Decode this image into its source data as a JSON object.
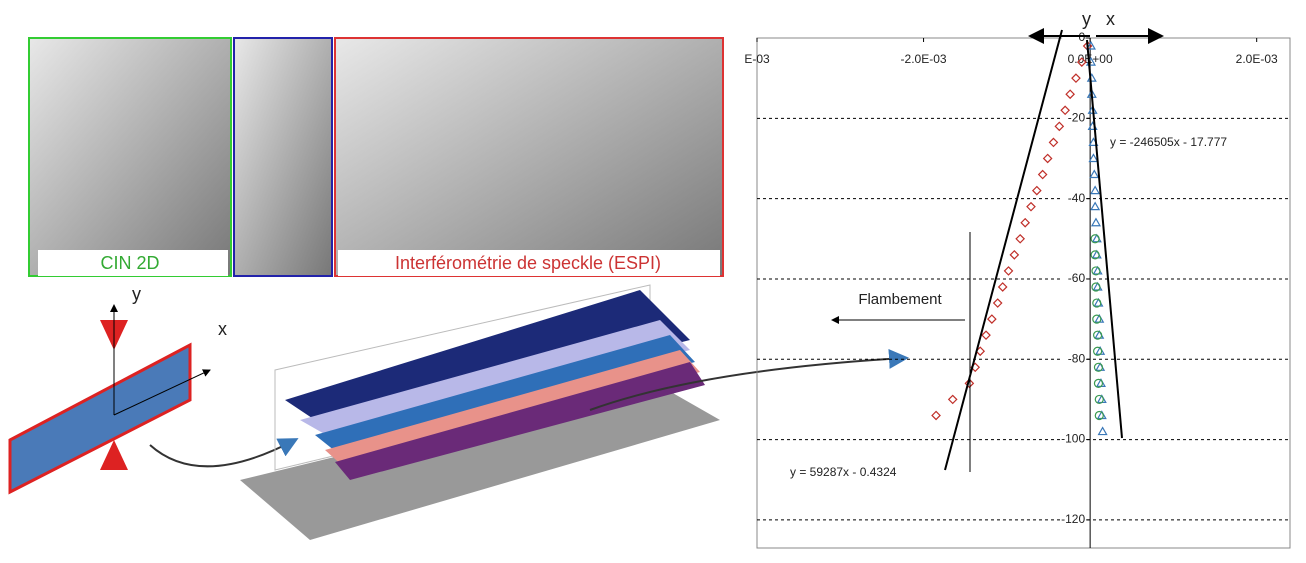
{
  "photos": {
    "cin": "CIN 2D",
    "espi": "Interférométrie de speckle (ESPI)"
  },
  "diagram": {
    "y": "y",
    "x": "x"
  },
  "chart_data": {
    "type": "scatter",
    "arrow_y": "y",
    "arrow_x": "x",
    "annotation": "Flambement",
    "equations": [
      "y = -246505x - 17.777",
      "y = 59287x - 0.4324"
    ],
    "xlim": [
      -0.004,
      0.0024
    ],
    "xticks": [
      {
        "value": -0.004,
        "label": "E-03"
      },
      {
        "value": -0.002,
        "label": "-2.0E-03"
      },
      {
        "value": 0,
        "label": "0.0E+00"
      },
      {
        "value": 0.002,
        "label": "2.0E-03"
      }
    ],
    "ylim": [
      -127,
      0
    ],
    "yticks": [
      0,
      -20,
      -40,
      -60,
      -80,
      -100,
      -120
    ],
    "grid": true,
    "series": [
      {
        "color": "#c0302a",
        "marker": "diamond",
        "x": [
          -3e-05,
          -0.0001,
          -0.00017,
          -0.00024,
          -0.0003,
          -0.00037,
          -0.00044,
          -0.00051,
          -0.00057,
          -0.00064,
          -0.00071,
          -0.00078,
          -0.00084,
          -0.00091,
          -0.00098,
          -0.00105,
          -0.00111,
          -0.00118,
          -0.00125,
          -0.00132,
          -0.00138,
          -0.00145,
          -0.00165,
          -0.00185
        ],
        "values": [
          -2,
          -6,
          -10,
          -14,
          -18,
          -22,
          -26,
          -30,
          -34,
          -38,
          -42,
          -46,
          -50,
          -54,
          -58,
          -62,
          -66,
          -70,
          -74,
          -78,
          -82,
          -86,
          -90,
          -94
        ]
      },
      {
        "color": "#3a78b8",
        "marker": "triangle",
        "x": [
          1e-05,
          1e-05,
          2e-05,
          2e-05,
          3e-05,
          3e-05,
          4e-05,
          4e-05,
          5e-05,
          6e-05,
          6e-05,
          7e-05,
          8e-05,
          8e-05,
          9e-05,
          9e-05,
          0.0001,
          0.00011,
          0.00011,
          0.00012,
          0.00012,
          0.00013,
          0.00014,
          0.00014,
          0.00015
        ],
        "values": [
          -2,
          -6,
          -10,
          -14,
          -18,
          -22,
          -26,
          -30,
          -34,
          -38,
          -42,
          -46,
          -50,
          -54,
          -58,
          -62,
          -66,
          -70,
          -74,
          -78,
          -82,
          -86,
          -90,
          -94,
          -98
        ]
      },
      {
        "color": "#3a9a50",
        "marker": "circle",
        "x": [
          6e-05,
          6e-05,
          7e-05,
          7e-05,
          8e-05,
          8e-05,
          9e-05,
          9e-05,
          0.0001,
          0.0001,
          0.00011,
          0.00011
        ],
        "values": [
          -50,
          -54,
          -58,
          -62,
          -66,
          -70,
          -74,
          -78,
          -82,
          -86,
          -90,
          -94
        ]
      }
    ]
  }
}
